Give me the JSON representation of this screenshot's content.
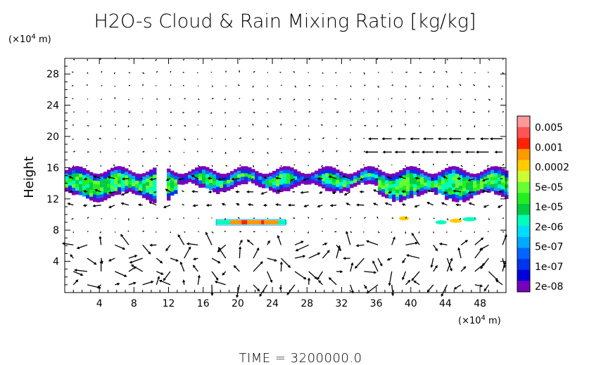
{
  "chart_data": {
    "type": "heatmap",
    "title": "H2O-s Cloud & Rain Mixing Ratio [kg/kg]",
    "ylabel": "Height",
    "y_unit_label": "(x10^4 m)",
    "x_unit_label": "(x10^4 m)",
    "xlim": [
      0,
      51
    ],
    "ylim": [
      0,
      30
    ],
    "x_ticks": [
      4,
      8,
      12,
      16,
      20,
      24,
      28,
      32,
      36,
      40,
      44,
      48
    ],
    "y_ticks": [
      4,
      8,
      12,
      16,
      20,
      24,
      28
    ],
    "x_tick_labels": [
      "4",
      "8",
      "12",
      "16",
      "20",
      "24",
      "28",
      "32",
      "36",
      "40",
      "44",
      "48"
    ],
    "y_tick_labels": [
      "4",
      "8",
      "12",
      "16",
      "20",
      "24",
      "28"
    ],
    "colorbar": {
      "labels": [
        "0.005",
        "0.001",
        "0.0002",
        "5e-05",
        "1e-05",
        "2e-06",
        "5e-07",
        "1e-07",
        "2e-08"
      ],
      "colors": [
        "#ff9999",
        "#ff5555",
        "#ff2200",
        "#ff9900",
        "#ffcc00",
        "#ccff33",
        "#66ff33",
        "#22ee22",
        "#00cc44",
        "#00ffbb",
        "#00ddff",
        "#00aaff",
        "#0066ff",
        "#0033ee",
        "#0000dd",
        "#7700bb"
      ]
    },
    "layers": {
      "cloud_base_height": 12,
      "cloud_top_height": 16,
      "rain_band_height": 9
    },
    "vector_field": "wind vectors",
    "footer": "TIME = 3200000.0"
  }
}
